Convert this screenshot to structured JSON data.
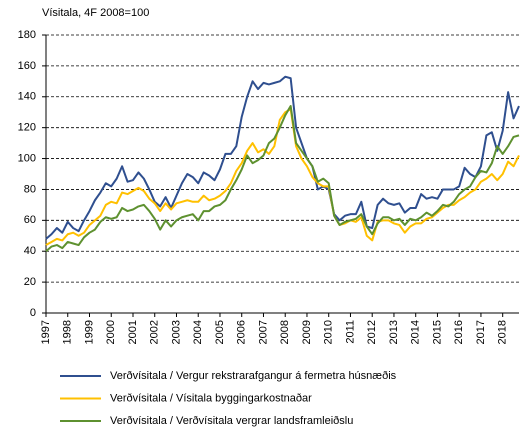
{
  "chart_data": {
    "type": "line",
    "title": "Vísitala, 4F 2008=100",
    "categories": [
      "1997",
      null,
      null,
      null,
      "1998",
      null,
      null,
      null,
      "1999",
      null,
      null,
      null,
      "2000",
      null,
      null,
      null,
      "2001",
      null,
      null,
      null,
      "2002",
      null,
      null,
      null,
      "2003",
      null,
      null,
      null,
      "2004",
      null,
      null,
      null,
      "2005",
      null,
      null,
      null,
      "2006",
      null,
      null,
      null,
      "2007",
      null,
      null,
      null,
      "2008",
      null,
      null,
      null,
      "2009",
      null,
      null,
      null,
      "2010",
      null,
      null,
      null,
      "2011",
      null,
      null,
      null,
      "2012",
      null,
      null,
      null,
      "2013",
      null,
      null,
      null,
      "2014",
      null,
      null,
      null,
      "2015",
      null,
      null,
      null,
      "2016",
      null,
      null,
      null,
      "2017",
      null,
      null,
      null,
      "2018",
      null,
      null,
      null
    ],
    "series": [
      {
        "name": "Verðvísitala / Vergur rekstrarafgangur á fermetra húsnæðis",
        "color": "#2f4f8f",
        "values": [
          48,
          51,
          55,
          52,
          59,
          55,
          53,
          60,
          66,
          73,
          78,
          84,
          82,
          87,
          95,
          85,
          86,
          91,
          87,
          80,
          72,
          69,
          75,
          68,
          76,
          84,
          90,
          88,
          84,
          91,
          89,
          86,
          93,
          103,
          103,
          108,
          127,
          140,
          150,
          145,
          149,
          148,
          149,
          150,
          153,
          152,
          120,
          110,
          100,
          95,
          80,
          82,
          80,
          64,
          60,
          63,
          64,
          64,
          72,
          56,
          55,
          70,
          74,
          71,
          70,
          71,
          65,
          68,
          68,
          77,
          74,
          75,
          74,
          80,
          80,
          80,
          82,
          94,
          90,
          88,
          95,
          115,
          117,
          105,
          118,
          143,
          126,
          134
        ]
      },
      {
        "name": "Verðvísitala / Vísitala byggingarkostnaðar",
        "color": "#ffc000",
        "values": [
          44,
          46,
          48,
          47,
          51,
          52,
          50,
          52,
          57,
          60,
          63,
          70,
          72,
          71,
          78,
          77,
          79,
          81,
          79,
          74,
          71,
          66,
          71,
          67,
          71,
          72,
          73,
          72,
          72,
          76,
          73,
          74,
          76,
          79,
          84,
          92,
          97,
          105,
          110,
          104,
          106,
          103,
          108,
          125,
          130,
          132,
          108,
          100,
          95,
          88,
          84,
          82,
          82,
          63,
          57,
          58,
          60,
          59,
          62,
          50,
          47,
          59,
          60,
          60,
          58,
          57,
          52,
          56,
          58,
          58,
          61,
          62,
          65,
          68,
          70,
          70,
          73,
          75,
          78,
          80,
          85,
          87,
          90,
          86,
          90,
          98,
          95,
          102
        ]
      },
      {
        "name": "Verðvísitala / Verðvísitala vergrar landsframleiðslu",
        "color": "#5e9130",
        "values": [
          40,
          43,
          44,
          42,
          46,
          45,
          44,
          49,
          52,
          54,
          59,
          62,
          61,
          62,
          68,
          66,
          67,
          69,
          70,
          66,
          61,
          54,
          60,
          56,
          60,
          62,
          63,
          64,
          60,
          66,
          66,
          69,
          70,
          73,
          80,
          86,
          93,
          102,
          97,
          99,
          102,
          110,
          113,
          120,
          128,
          134,
          110,
          105,
          100,
          95,
          85,
          87,
          84,
          63,
          57,
          59,
          60,
          61,
          64,
          56,
          51,
          58,
          62,
          62,
          60,
          61,
          57,
          61,
          60,
          62,
          65,
          63,
          66,
          70,
          69,
          72,
          77,
          80,
          82,
          88,
          92,
          91,
          97,
          108,
          103,
          108,
          114,
          115
        ]
      }
    ],
    "ylim": [
      0,
      180
    ],
    "yticks": [
      0,
      20,
      40,
      60,
      80,
      100,
      120,
      140,
      160,
      180
    ],
    "grid": true,
    "legend": "bottom"
  }
}
